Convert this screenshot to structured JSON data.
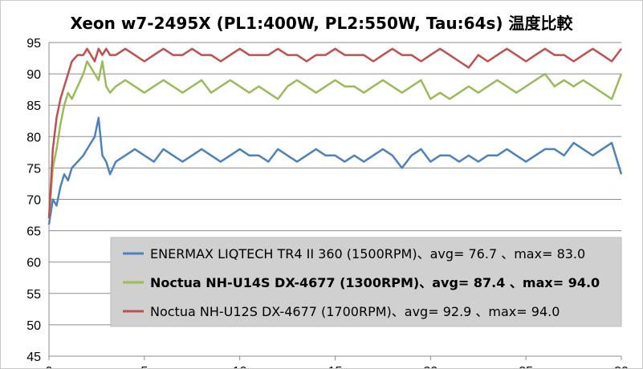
{
  "chart_data": {
    "type": "line",
    "title": "Xeon w7-2495X (PL1:400W, PL2:550W, Tau:64s) 温度比較",
    "xlabel": "",
    "ylabel": "",
    "xlim": [
      0,
      30
    ],
    "ylim": [
      45,
      95
    ],
    "x_ticks": [
      0,
      5,
      10,
      15,
      20,
      25,
      30
    ],
    "y_ticks": [
      45,
      50,
      55,
      60,
      65,
      70,
      75,
      80,
      85,
      90,
      95
    ],
    "grid": "horizontal",
    "legend_position": "bottom-right",
    "series": [
      {
        "name": "ENERMAX LIQTECH TR4 II 360 (1500RPM)、avg= 76.7 、max= 83.0",
        "color": "#4f81bd",
        "bold": false,
        "x": [
          0,
          0.2,
          0.4,
          0.6,
          0.8,
          1.0,
          1.2,
          1.5,
          1.8,
          2.0,
          2.2,
          2.4,
          2.6,
          2.8,
          3.0,
          3.2,
          3.5,
          4,
          4.5,
          5,
          5.5,
          6,
          6.5,
          7,
          7.5,
          8,
          8.5,
          9,
          9.5,
          10,
          10.5,
          11,
          11.5,
          12,
          12.5,
          13,
          13.5,
          14,
          14.5,
          15,
          15.5,
          16,
          16.5,
          17,
          17.5,
          18,
          18.5,
          19,
          19.5,
          20,
          20.5,
          21,
          21.5,
          22,
          22.5,
          23,
          23.5,
          24,
          24.5,
          25,
          25.5,
          26,
          26.5,
          27,
          27.5,
          28,
          28.5,
          29,
          29.5,
          30
        ],
        "y": [
          66,
          70,
          69,
          72,
          74,
          73,
          75,
          76,
          77,
          78,
          79,
          80,
          83,
          77,
          76,
          74,
          76,
          77,
          78,
          77,
          76,
          78,
          77,
          76,
          77,
          78,
          77,
          76,
          77,
          78,
          77,
          77,
          76,
          78,
          77,
          76,
          77,
          78,
          77,
          77,
          76,
          77,
          76,
          77,
          78,
          77,
          75,
          77,
          78,
          76,
          77,
          77,
          76,
          77,
          76,
          77,
          77,
          78,
          77,
          76,
          77,
          78,
          78,
          77,
          79,
          78,
          77,
          78,
          79,
          74
        ]
      },
      {
        "name": "Noctua NH-U14S DX-4677 (1300RPM)、avg= 87.4 、max= 94.0",
        "color": "#9bbb59",
        "bold": true,
        "x": [
          0,
          0.2,
          0.4,
          0.6,
          0.8,
          1.0,
          1.2,
          1.5,
          1.8,
          2.0,
          2.2,
          2.4,
          2.6,
          2.8,
          3.0,
          3.2,
          3.5,
          4,
          4.5,
          5,
          5.5,
          6,
          6.5,
          7,
          7.5,
          8,
          8.5,
          9,
          9.5,
          10,
          10.5,
          11,
          11.5,
          12,
          12.5,
          13,
          13.5,
          14,
          14.5,
          15,
          15.5,
          16,
          16.5,
          17,
          17.5,
          18,
          18.5,
          19,
          19.5,
          20,
          20.5,
          21,
          21.5,
          22,
          22.5,
          23,
          23.5,
          24,
          24.5,
          25,
          25.5,
          26,
          26.5,
          27,
          27.5,
          28,
          28.5,
          29,
          29.5,
          30
        ],
        "y": [
          67,
          75,
          78,
          82,
          85,
          87,
          86,
          88,
          90,
          92,
          91,
          90,
          89,
          92,
          88,
          87,
          88,
          89,
          88,
          87,
          88,
          89,
          88,
          87,
          88,
          89,
          87,
          88,
          89,
          88,
          87,
          88,
          87,
          86,
          88,
          89,
          88,
          87,
          88,
          89,
          88,
          88,
          87,
          88,
          89,
          88,
          87,
          88,
          89,
          86,
          87,
          86,
          87,
          88,
          87,
          88,
          89,
          88,
          87,
          88,
          89,
          90,
          88,
          89,
          88,
          89,
          88,
          87,
          86,
          90
        ]
      },
      {
        "name": "Noctua NH-U12S DX-4677 (1700RPM)、avg= 92.9 、max= 94.0",
        "color": "#c0504d",
        "bold": false,
        "x": [
          0,
          0.2,
          0.4,
          0.6,
          0.8,
          1.0,
          1.2,
          1.5,
          1.8,
          2.0,
          2.2,
          2.4,
          2.6,
          2.8,
          3.0,
          3.2,
          3.5,
          4,
          4.5,
          5,
          5.5,
          6,
          6.5,
          7,
          7.5,
          8,
          8.5,
          9,
          9.5,
          10,
          10.5,
          11,
          11.5,
          12,
          12.5,
          13,
          13.5,
          14,
          14.5,
          15,
          15.5,
          16,
          16.5,
          17,
          17.5,
          18,
          18.5,
          19,
          19.5,
          20,
          20.5,
          21,
          21.5,
          22,
          22.5,
          23,
          23.5,
          24,
          24.5,
          25,
          25.5,
          26,
          26.5,
          27,
          27.5,
          28,
          28.5,
          29,
          29.5,
          30
        ],
        "y": [
          67,
          78,
          83,
          86,
          88,
          90,
          92,
          93,
          93,
          94,
          93,
          92,
          94,
          93,
          94,
          93,
          93,
          94,
          93,
          92,
          93,
          94,
          93,
          93,
          94,
          93,
          93,
          92,
          93,
          94,
          93,
          93,
          93,
          94,
          93,
          93,
          92,
          93,
          93,
          94,
          93,
          93,
          93,
          92,
          93,
          94,
          93,
          93,
          92,
          93,
          94,
          93,
          92,
          91,
          93,
          92,
          93,
          94,
          93,
          92,
          93,
          94,
          93,
          93,
          92,
          93,
          94,
          93,
          92,
          94
        ]
      }
    ]
  }
}
